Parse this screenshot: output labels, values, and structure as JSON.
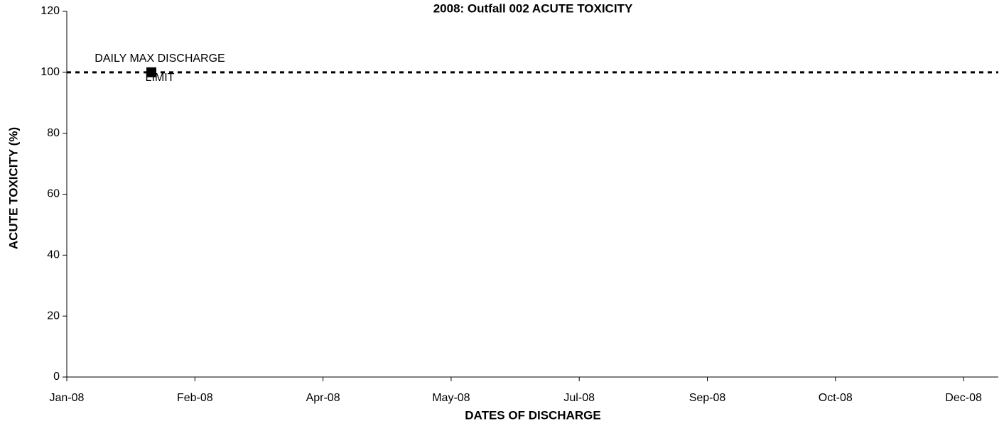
{
  "chart_data": {
    "type": "line",
    "title": "2008: Outfall 002 ACUTE TOXICITY",
    "y_label": "ACUTE TOXICITY (%)",
    "x_label": "DATES OF DISCHARGE",
    "categories": [
      "Jan-08",
      "Feb-08",
      "Apr-08",
      "May-08",
      "Jul-08",
      "Sep-08",
      "Oct-08",
      "Dec-08"
    ],
    "ylim": [
      0,
      120
    ],
    "yticks": [
      0,
      20,
      40,
      60,
      80,
      100,
      120
    ],
    "reference_line": {
      "label": "DAILY MAX DISCHARGE LIMIT",
      "value": 100,
      "color": "#000000"
    },
    "grid": false
  }
}
